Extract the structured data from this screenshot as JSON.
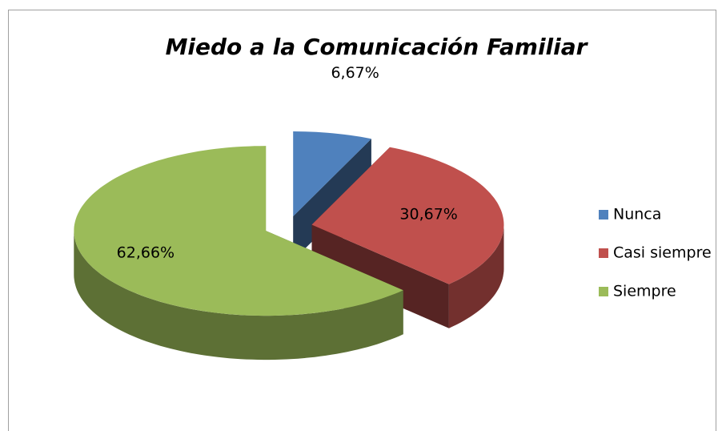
{
  "chart_data": {
    "type": "pie3d",
    "title": "Miedo a la Comunicación Familiar",
    "categories": [
      "Nunca",
      "Casi siempre",
      "Siempre"
    ],
    "values": [
      6.67,
      30.67,
      62.66
    ],
    "value_labels": [
      "6,67%",
      "30,67%",
      "62,66%"
    ],
    "colors": [
      "#4f81bd",
      "#c0504d",
      "#9bbb59"
    ],
    "legend": "right"
  }
}
